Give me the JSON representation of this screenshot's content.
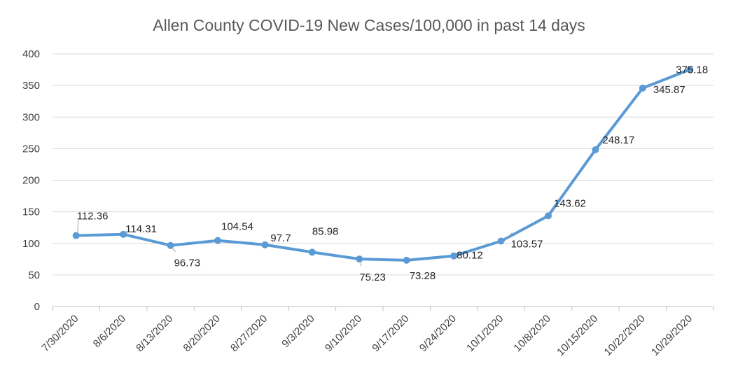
{
  "chart_data": {
    "type": "line",
    "title": "Allen County COVID-19 New Cases/100,000 in past 14 days",
    "xlabel": "",
    "ylabel": "",
    "categories": [
      "7/30/2020",
      "8/6/2020",
      "8/13/2020",
      "8/20/2020",
      "8/27/2020",
      "9/3/2020",
      "9/10/2020",
      "9/17/2020",
      "9/24/2020",
      "10/1/2020",
      "10/8/2020",
      "10/15/2020",
      "10/22/2020",
      "10/29/2020"
    ],
    "series": [
      {
        "values": [
          112.36,
          114.31,
          96.73,
          104.54,
          97.7,
          85.98,
          75.23,
          73.28,
          80.12,
          103.57,
          143.62,
          248.17,
          345.87,
          375.18
        ],
        "labels": [
          "112.36",
          "114.31",
          "96.73",
          "104.54",
          "97.7",
          "85.98",
          "75.23",
          "73.28",
          "80.12",
          "103.57",
          "143.62",
          "248.17",
          "345.87",
          "375.18"
        ],
        "color": "#5b9bd5"
      }
    ],
    "ylim": [
      0,
      400
    ],
    "yticks": [
      0,
      50,
      100,
      150,
      200,
      250,
      300,
      350,
      400
    ],
    "grid": true,
    "legend": "none"
  }
}
